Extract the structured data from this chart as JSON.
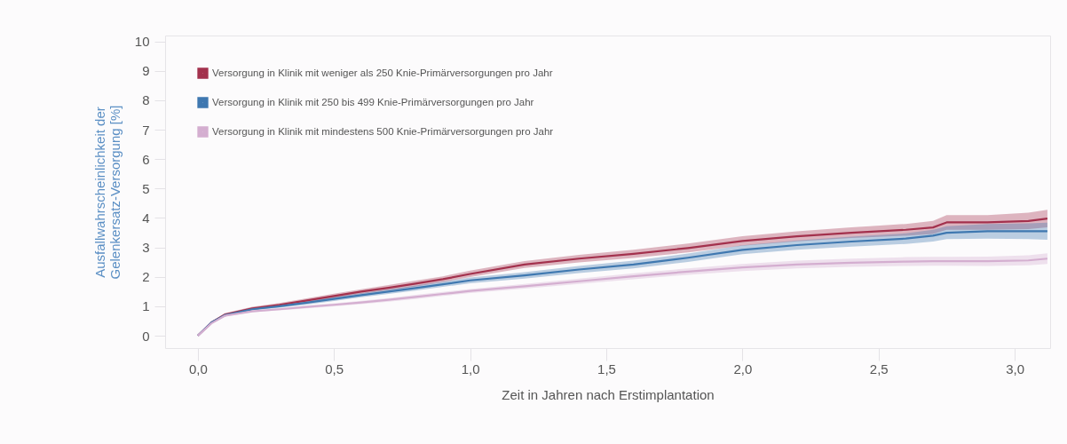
{
  "chart_data": {
    "type": "line",
    "xlabel": "Zeit in Jahren nach Erstimplantation",
    "ylabel": "Ausfallwahrscheinlichkeit der\nGelenkersatz-Versorgung [%]",
    "x": [
      0,
      0.05,
      0.1,
      0.2,
      0.3,
      0.4,
      0.5,
      0.6,
      0.7,
      0.8,
      0.9,
      1.0,
      1.2,
      1.4,
      1.6,
      1.8,
      2.0,
      2.2,
      2.4,
      2.6,
      2.7,
      2.75,
      2.9,
      3.05,
      3.12
    ],
    "series": [
      {
        "name": "Versorgung in Klinik mit weniger als 250 Knie-Primärversorgungen pro Jahr",
        "color": "#a3314d",
        "values": [
          0,
          0.45,
          0.72,
          0.93,
          1.05,
          1.2,
          1.35,
          1.5,
          1.63,
          1.77,
          1.92,
          2.1,
          2.42,
          2.62,
          2.78,
          2.98,
          3.22,
          3.38,
          3.5,
          3.6,
          3.68,
          3.85,
          3.85,
          3.9,
          3.98
        ],
        "lower": [
          0,
          0.42,
          0.67,
          0.88,
          0.99,
          1.13,
          1.27,
          1.42,
          1.54,
          1.67,
          1.82,
          1.99,
          2.3,
          2.49,
          2.64,
          2.83,
          3.06,
          3.21,
          3.32,
          3.4,
          3.46,
          3.6,
          3.6,
          3.62,
          3.68
        ],
        "upper": [
          0,
          0.48,
          0.77,
          0.98,
          1.11,
          1.27,
          1.43,
          1.58,
          1.72,
          1.87,
          2.02,
          2.21,
          2.54,
          2.75,
          2.92,
          3.13,
          3.38,
          3.55,
          3.68,
          3.8,
          3.9,
          4.1,
          4.1,
          4.18,
          4.28
        ]
      },
      {
        "name": "Versorgung in Klinik mit 250 bis 499 Knie-Primärversorgungen pro Jahr",
        "color": "#3f78b0",
        "values": [
          0,
          0.45,
          0.7,
          0.9,
          1.0,
          1.12,
          1.25,
          1.38,
          1.5,
          1.62,
          1.75,
          1.88,
          2.05,
          2.25,
          2.42,
          2.65,
          2.92,
          3.08,
          3.2,
          3.3,
          3.4,
          3.5,
          3.55,
          3.55,
          3.55
        ],
        "lower": [
          0,
          0.42,
          0.66,
          0.86,
          0.95,
          1.06,
          1.18,
          1.31,
          1.42,
          1.53,
          1.66,
          1.78,
          1.94,
          2.13,
          2.29,
          2.51,
          2.77,
          2.92,
          3.03,
          3.12,
          3.2,
          3.28,
          3.3,
          3.28,
          3.26
        ],
        "upper": [
          0,
          0.48,
          0.74,
          0.94,
          1.05,
          1.18,
          1.32,
          1.45,
          1.58,
          1.71,
          1.84,
          1.98,
          2.16,
          2.37,
          2.55,
          2.79,
          3.07,
          3.24,
          3.37,
          3.48,
          3.6,
          3.72,
          3.8,
          3.82,
          3.84
        ]
      },
      {
        "name": "Versorgung in Klinik mit mindestens 500 Knie-Primärversorgungen pro Jahr",
        "color": "#d4aed0",
        "values": [
          0,
          0.42,
          0.68,
          0.83,
          0.9,
          0.98,
          1.05,
          1.13,
          1.22,
          1.32,
          1.42,
          1.52,
          1.68,
          1.85,
          2.02,
          2.18,
          2.32,
          2.42,
          2.48,
          2.52,
          2.53,
          2.53,
          2.53,
          2.56,
          2.62
        ],
        "lower": [
          0,
          0.4,
          0.65,
          0.8,
          0.86,
          0.93,
          1.0,
          1.07,
          1.16,
          1.25,
          1.35,
          1.45,
          1.6,
          1.76,
          1.92,
          2.07,
          2.2,
          2.29,
          2.34,
          2.37,
          2.38,
          2.38,
          2.37,
          2.39,
          2.44
        ],
        "upper": [
          0,
          0.44,
          0.71,
          0.86,
          0.94,
          1.03,
          1.1,
          1.19,
          1.28,
          1.39,
          1.49,
          1.59,
          1.76,
          1.94,
          2.12,
          2.29,
          2.44,
          2.55,
          2.62,
          2.67,
          2.68,
          2.68,
          2.69,
          2.73,
          2.8
        ]
      }
    ],
    "xlim": [
      -0.12,
      3.13
    ],
    "xticks": [
      {
        "value": 0,
        "label": "0,0"
      },
      {
        "value": 0.5,
        "label": "0,5"
      },
      {
        "value": 1,
        "label": "1,0"
      },
      {
        "value": 1.5,
        "label": "1,5"
      },
      {
        "value": 2,
        "label": "2,0"
      },
      {
        "value": 2.5,
        "label": "2,5"
      },
      {
        "value": 3,
        "label": "3,0"
      }
    ],
    "ylim": [
      -0.42,
      10.2
    ],
    "yticks": [
      0,
      1,
      2,
      3,
      4,
      5,
      6,
      7,
      8,
      9,
      10
    ],
    "grid": false,
    "legend": "top left",
    "marker": "none",
    "line_style": "solid"
  }
}
